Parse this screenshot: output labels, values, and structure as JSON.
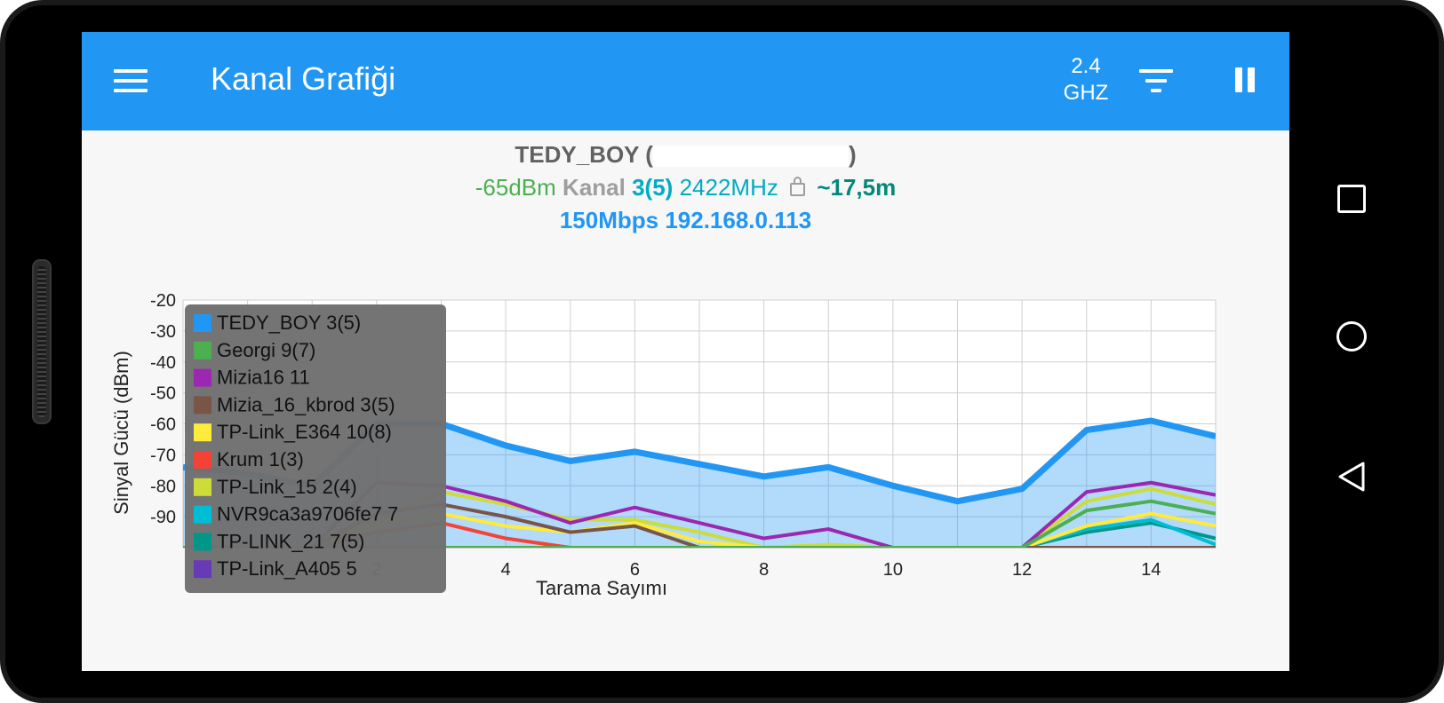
{
  "appbar": {
    "title": "Kanal Grafiği",
    "band_top": "2.4",
    "band_bottom": "GHZ",
    "menu_icon": "menu-icon",
    "filter_icon": "filter-icon",
    "pause_icon": "pause-icon"
  },
  "connection": {
    "ssid": "TEDY_BOY",
    "ssid_open": "(",
    "ssid_close": ")",
    "signal": "-65dBm",
    "channel_label": "Kanal",
    "channel": "3(5)",
    "frequency": "2422MHz",
    "distance": "~17,5m",
    "link_speed": "150Mbps",
    "ip": "192.168.0.113"
  },
  "colors": {
    "accent": "#2196f3",
    "signal_green": "#4caf50",
    "channel_cyan": "#00acc1",
    "distance_teal": "#00897b"
  },
  "chart_data": {
    "type": "area",
    "title": "",
    "xlabel": "Tarama Sayımı",
    "ylabel": "Sinyal Gücü (dBm)",
    "ylim": [
      -100,
      -20
    ],
    "xlim": [
      -1,
      15
    ],
    "y_ticks": [
      -20,
      -30,
      -40,
      -50,
      -60,
      -70,
      -80,
      -90
    ],
    "x_ticks": [
      2,
      4,
      6,
      8,
      10,
      12,
      14
    ],
    "grid": true,
    "legend_position": "top-left",
    "x": [
      -1,
      0,
      1,
      2,
      3,
      4,
      5,
      6,
      7,
      8,
      9,
      10,
      11,
      12,
      13,
      14,
      15
    ],
    "series": [
      {
        "name": "TEDY_BOY 3(5)",
        "color": "#2196f3",
        "filled": true,
        "values": [
          -74,
          -76,
          -80,
          -60,
          -60,
          -67,
          -72,
          -69,
          -73,
          -77,
          -74,
          -80,
          -85,
          -81,
          -62,
          -59,
          -64
        ]
      },
      {
        "name": "Georgi 9(7)",
        "color": "#4caf50",
        "values": [
          -100,
          -100,
          -100,
          -100,
          -100,
          -100,
          -100,
          -100,
          -100,
          -100,
          -100,
          -100,
          -100,
          -100,
          -88,
          -85,
          -89
        ]
      },
      {
        "name": "Mizia16 11",
        "color": "#9c27b0",
        "values": [
          -100,
          -100,
          -100,
          -79,
          -80,
          -85,
          -92,
          -87,
          -92,
          -97,
          -94,
          -100,
          -100,
          -100,
          -82,
          -79,
          -83
        ]
      },
      {
        "name": "Mizia_16_kbrod 3(5)",
        "color": "#795548",
        "values": [
          -100,
          -100,
          -100,
          -89,
          -86,
          -90,
          -95,
          -93,
          -100,
          -100,
          -100,
          -100,
          -100,
          -100,
          -100,
          -100,
          -100
        ]
      },
      {
        "name": "TP-Link_E364 10(8)",
        "color": "#ffeb3b",
        "values": [
          -100,
          -100,
          -100,
          -92,
          -89,
          -93,
          -95,
          -92,
          -98,
          -100,
          -100,
          -100,
          -100,
          -100,
          -93,
          -89,
          -93
        ]
      },
      {
        "name": "Krum 1(3)",
        "color": "#f44336",
        "values": [
          -100,
          -100,
          -100,
          -95,
          -92,
          -97,
          -100,
          -100,
          -100,
          -100,
          -100,
          -100,
          -100,
          -100,
          -100,
          -100,
          -100
        ]
      },
      {
        "name": "TP-Link_15 2(4)",
        "color": "#cddc39",
        "values": [
          -100,
          -100,
          -100,
          -91,
          -82,
          -86,
          -91,
          -91,
          -95,
          -100,
          -99,
          -100,
          -100,
          -100,
          -85,
          -81,
          -86
        ]
      },
      {
        "name": "NVR9ca3a9706fe7 7",
        "color": "#00bcd4",
        "values": [
          -100,
          -100,
          -100,
          -100,
          -100,
          -100,
          -100,
          -100,
          -100,
          -100,
          -100,
          -100,
          -100,
          -100,
          -94,
          -91,
          -99
        ]
      },
      {
        "name": "TP-LINK_21 7(5)",
        "color": "#009688",
        "values": [
          -100,
          -100,
          -100,
          -100,
          -100,
          -100,
          -100,
          -100,
          -100,
          -100,
          -100,
          -100,
          -100,
          -100,
          -95,
          -92,
          -97
        ]
      },
      {
        "name": "TP-Link_A405 5",
        "color": "#673ab7",
        "values": [
          -100,
          -100,
          -100,
          -100,
          -100,
          -100,
          -100,
          -100,
          -100,
          -100,
          -100,
          -100,
          -100,
          -100,
          -100,
          -100,
          -100
        ]
      }
    ]
  },
  "navbar": {
    "overview_icon": "square-icon",
    "home_icon": "circle-icon",
    "back_icon": "triangle-back-icon"
  }
}
